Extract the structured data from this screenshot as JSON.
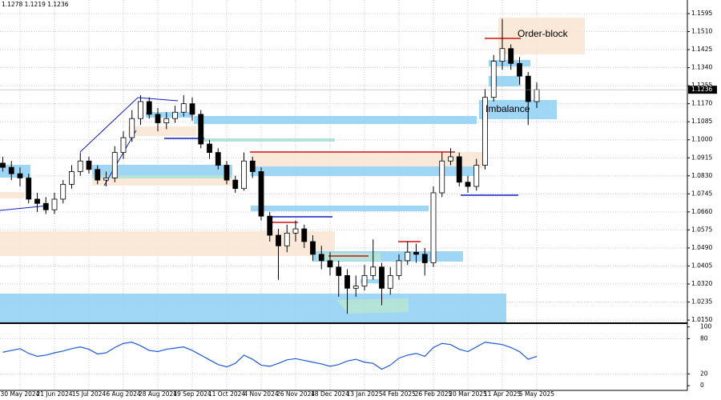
{
  "header": "1.1278 1.1219 1.1236",
  "chart_data": [
    {
      "type": "candlestick",
      "categories": [
        null,
        null,
        "30 May 2024",
        null,
        null,
        null,
        "21 Jun 2024",
        null,
        null,
        null,
        "15 Jul 2024",
        null,
        null,
        null,
        "6 Aug 2024",
        null,
        null,
        null,
        "28 Aug 2024",
        null,
        null,
        null,
        "19 Sep 2024",
        null,
        null,
        null,
        "11 Oct 2024",
        null,
        null,
        null,
        "4 Nov 2024",
        null,
        null,
        null,
        "26 Nov 2024",
        null,
        null,
        null,
        "18 Dec 2024",
        null,
        null,
        null,
        "13 Jan 2025",
        null,
        null,
        null,
        "4 Feb 2025",
        null,
        null,
        null,
        "26 Feb 2025",
        null,
        null,
        null,
        "20 Mar 2025",
        null,
        null,
        null,
        "11 Apr 2025",
        null,
        null,
        null,
        "5 May 2025"
      ],
      "open": [
        1.089,
        1.087,
        1.084,
        1.082,
        1.072,
        1.07,
        1.067,
        1.072,
        1.079,
        1.085,
        1.09,
        1.086,
        1.081,
        1.082,
        1.094,
        1.101,
        1.11,
        1.118,
        1.112,
        1.108,
        1.11,
        1.113,
        1.117,
        1.112,
        1.098,
        1.094,
        1.088,
        1.081,
        1.077,
        1.09,
        1.085,
        1.064,
        1.055,
        1.05,
        1.056,
        1.058,
        1.052,
        1.046,
        1.043,
        1.04,
        1.036,
        1.03,
        1.031,
        1.036,
        1.04,
        1.03,
        1.036,
        1.043,
        1.047,
        1.046,
        1.042,
        1.075,
        1.09,
        1.092,
        1.08,
        1.078,
        1.088,
        1.12,
        1.137,
        1.143,
        1.136,
        1.13,
        1.118
      ],
      "high": [
        1.092,
        1.09,
        1.087,
        1.084,
        1.075,
        1.073,
        1.075,
        1.081,
        1.088,
        1.094,
        1.092,
        1.088,
        1.085,
        1.097,
        1.104,
        1.114,
        1.121,
        1.12,
        1.115,
        1.113,
        1.116,
        1.121,
        1.12,
        1.114,
        1.1,
        1.096,
        1.09,
        1.083,
        1.094,
        1.092,
        1.087,
        1.066,
        1.058,
        1.06,
        1.062,
        1.06,
        1.055,
        1.05,
        1.047,
        1.043,
        1.039,
        1.036,
        1.041,
        1.053,
        1.042,
        1.04,
        1.046,
        1.052,
        1.051,
        1.049,
        1.078,
        1.094,
        1.096,
        1.094,
        1.083,
        1.091,
        1.124,
        1.14,
        1.157,
        1.145,
        1.139,
        1.132,
        1.127
      ],
      "low": [
        1.085,
        1.081,
        1.078,
        1.07,
        1.066,
        1.065,
        1.065,
        1.07,
        1.077,
        1.083,
        1.084,
        1.079,
        1.078,
        1.08,
        1.091,
        1.099,
        1.107,
        1.11,
        1.104,
        1.105,
        1.108,
        1.111,
        1.109,
        1.096,
        1.091,
        1.086,
        1.079,
        1.075,
        1.076,
        1.082,
        1.062,
        1.052,
        1.034,
        1.047,
        1.052,
        1.049,
        1.043,
        1.039,
        1.036,
        1.026,
        1.018,
        1.026,
        1.029,
        1.034,
        1.022,
        1.027,
        1.034,
        1.041,
        1.042,
        1.036,
        1.04,
        1.073,
        1.088,
        1.078,
        1.075,
        1.076,
        1.086,
        1.118,
        1.133,
        1.133,
        1.126,
        1.107,
        1.115
      ],
      "close": [
        1.087,
        1.084,
        1.082,
        1.072,
        1.07,
        1.067,
        1.072,
        1.079,
        1.085,
        1.09,
        1.086,
        1.081,
        1.082,
        1.094,
        1.101,
        1.11,
        1.118,
        1.112,
        1.108,
        1.11,
        1.113,
        1.117,
        1.112,
        1.098,
        1.094,
        1.088,
        1.081,
        1.077,
        1.09,
        1.085,
        1.064,
        1.055,
        1.05,
        1.056,
        1.058,
        1.052,
        1.046,
        1.043,
        1.04,
        1.036,
        1.03,
        1.031,
        1.036,
        1.04,
        1.03,
        1.036,
        1.043,
        1.047,
        1.046,
        1.042,
        1.075,
        1.09,
        1.092,
        1.08,
        1.078,
        1.088,
        1.12,
        1.137,
        1.143,
        1.136,
        1.13,
        1.118,
        1.1236
      ],
      "color_up": "#ffffff",
      "color_down": "#000000",
      "ylim": [
        1.0139,
        1.1659
      ],
      "yticks": [
        {
          "value": 1.1595,
          "label": "1.1595"
        },
        {
          "value": 1.151,
          "label": "1.1510"
        },
        {
          "value": 1.1425,
          "label": "1.1425"
        },
        {
          "value": 1.134,
          "label": "1.1340"
        },
        {
          "value": 1.1255,
          "label": "1.1255"
        },
        {
          "value": 1.117,
          "label": "1.1170"
        },
        {
          "value": 1.1085,
          "label": "1.1085"
        },
        {
          "value": 1.1,
          "label": "1.1000"
        },
        {
          "value": 1.0915,
          "label": "1.0915"
        },
        {
          "value": 1.083,
          "label": "1.0830"
        },
        {
          "value": 1.0745,
          "label": "1.0745"
        },
        {
          "value": 1.066,
          "label": "1.0660"
        },
        {
          "value": 1.0575,
          "label": "1.0575"
        },
        {
          "value": 1.049,
          "label": "1.0490"
        },
        {
          "value": 1.0405,
          "label": "1.0405"
        },
        {
          "value": 1.032,
          "label": "1.0320"
        },
        {
          "value": 1.0235,
          "label": "1.0235"
        },
        {
          "value": 1.015,
          "label": "1.0150"
        }
      ],
      "current_price": 1.1236,
      "annotations": [
        "Order-block",
        "Imbalance"
      ],
      "grid": true
    },
    {
      "type": "line",
      "values": [
        57,
        60,
        63,
        55,
        50,
        52,
        56,
        59,
        63,
        66,
        62,
        54,
        56,
        65,
        72,
        74,
        68,
        60,
        58,
        62,
        64,
        66,
        60,
        52,
        44,
        36,
        32,
        38,
        52,
        45,
        35,
        33,
        38,
        44,
        46,
        43,
        40,
        37,
        33,
        36,
        42,
        45,
        40,
        38,
        28,
        35,
        47,
        52,
        55,
        50,
        65,
        72,
        70,
        62,
        58,
        66,
        74,
        72,
        70,
        65,
        58,
        45,
        50
      ],
      "color": "#1e5ad8",
      "ylim": [
        -8,
        105
      ],
      "yticks": [
        100,
        80,
        20,
        0
      ],
      "grid": true
    }
  ]
}
